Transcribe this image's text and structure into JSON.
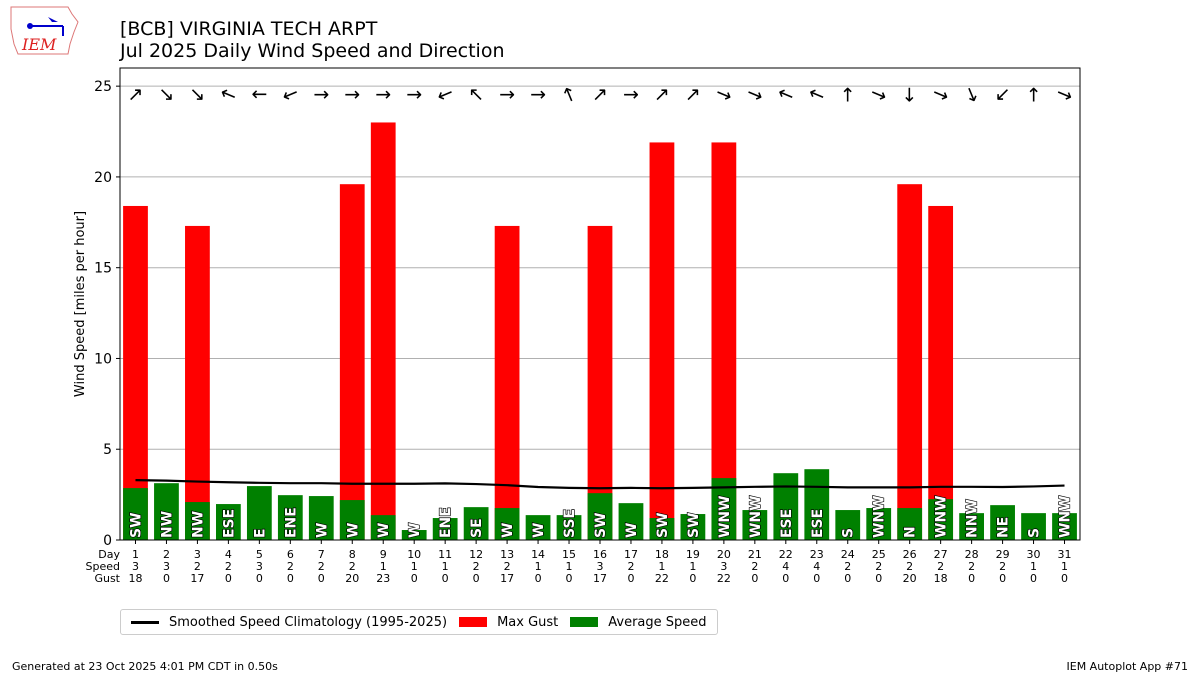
{
  "header": {
    "title_line1": "[BCB] VIRGINIA TECH ARPT",
    "title_line2": "Jul 2025 Daily Wind Speed and Direction",
    "logo_text": "IEM"
  },
  "chart_data": {
    "type": "bar",
    "ylabel": "Wind Speed [miles per hour]",
    "ylim": [
      0,
      26
    ],
    "xlim": [
      0.5,
      31.5
    ],
    "yticks": [
      0,
      5,
      10,
      15,
      20,
      25
    ],
    "grid": true,
    "table_row_labels": [
      "Day",
      "Speed",
      "Gust"
    ],
    "days": [
      1,
      2,
      3,
      4,
      5,
      6,
      7,
      8,
      9,
      10,
      11,
      12,
      13,
      14,
      15,
      16,
      17,
      18,
      19,
      20,
      21,
      22,
      23,
      24,
      25,
      26,
      27,
      28,
      29,
      30,
      31
    ],
    "speed_rounded": [
      3,
      3,
      2,
      2,
      3,
      2,
      2,
      2,
      1,
      1,
      1,
      2,
      2,
      1,
      1,
      3,
      2,
      1,
      1,
      3,
      2,
      4,
      4,
      2,
      2,
      2,
      2,
      2,
      2,
      1,
      1
    ],
    "gust": [
      18,
      0,
      17,
      0,
      0,
      0,
      0,
      20,
      23,
      0,
      0,
      0,
      17,
      0,
      0,
      17,
      0,
      22,
      0,
      22,
      0,
      0,
      0,
      0,
      0,
      20,
      18,
      0,
      0,
      0,
      0
    ],
    "series": [
      {
        "name": "Max Gust",
        "color": "#ff0000",
        "values": [
          18.4,
          0,
          17.3,
          0,
          0,
          0,
          0,
          19.6,
          23.0,
          0,
          0,
          0,
          17.3,
          0,
          0,
          17.3,
          0,
          21.9,
          0,
          21.9,
          0,
          0,
          0,
          0,
          0,
          19.6,
          18.4,
          0,
          0,
          0,
          0
        ]
      },
      {
        "name": "Average Speed",
        "color": "#008000",
        "values": [
          2.86,
          3.13,
          2.09,
          1.98,
          2.97,
          2.47,
          2.42,
          2.2,
          1.37,
          0.55,
          1.21,
          1.81,
          1.76,
          1.37,
          1.37,
          2.58,
          2.03,
          1.21,
          1.43,
          3.41,
          1.65,
          3.68,
          3.9,
          1.65,
          1.76,
          1.76,
          2.25,
          1.48,
          1.92,
          1.48,
          1.48
        ]
      },
      {
        "name": "Smoothed Speed Climatology (1995-2025)",
        "color": "#000000",
        "values": [
          3.3,
          3.27,
          3.22,
          3.18,
          3.15,
          3.13,
          3.13,
          3.1,
          3.1,
          3.1,
          3.12,
          3.08,
          3.02,
          2.92,
          2.87,
          2.85,
          2.87,
          2.85,
          2.87,
          2.9,
          2.93,
          2.95,
          2.93,
          2.9,
          2.9,
          2.9,
          2.93,
          2.93,
          2.92,
          2.95,
          3.0
        ]
      }
    ],
    "direction_labels": [
      "SW",
      "NW",
      "NW",
      "ESE",
      "E",
      "ENE",
      "W",
      "W",
      "W",
      "W",
      "ENE",
      "SE",
      "W",
      "W",
      "SSE",
      "SW",
      "W",
      "SW",
      "SW",
      "WNW",
      "WNW",
      "ESE",
      "ESE",
      "S",
      "WNW",
      "N",
      "WNW",
      "NNW",
      "NE",
      "S",
      "WNW"
    ],
    "arrow_y_value": 24.7,
    "legend_position": "bottom-left"
  },
  "footer": {
    "generated": "Generated at 23 Oct 2025 4:01 PM CDT in 0.50s",
    "app": "IEM Autoplot App #71"
  }
}
